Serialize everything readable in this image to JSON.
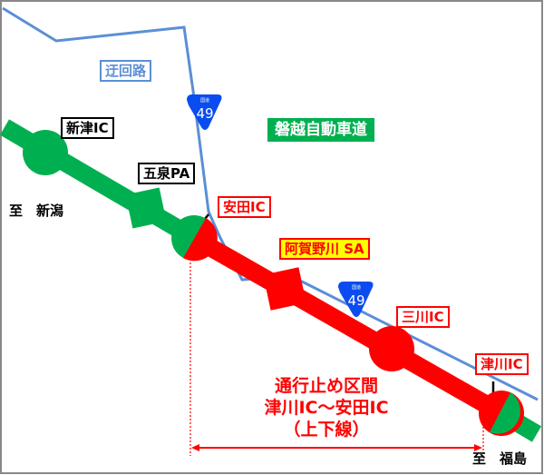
{
  "colors": {
    "open_section": "#00b050",
    "closed_section": "#ff0000",
    "detour": "#5b8fd6",
    "route_shield": "#0a4cf0"
  },
  "detour_label": "迂回路",
  "expressway_label": "磐越自動車道",
  "route_shield": {
    "top": "国道",
    "number": "49"
  },
  "facilities": [
    {
      "name": "新津IC",
      "status": "open"
    },
    {
      "name": "五泉PA",
      "status": "open"
    },
    {
      "name": "安田IC",
      "status": "boundary"
    },
    {
      "name": "阿賀野川 SA",
      "status": "closed"
    },
    {
      "name": "三川IC",
      "status": "closed"
    },
    {
      "name": "津川IC",
      "status": "boundary"
    }
  ],
  "direction_west": "至　新潟",
  "direction_east": "至　福島",
  "closure": {
    "line1": "通行止め区間",
    "line2": "津川IC～安田IC",
    "line3": "（上下線）"
  }
}
